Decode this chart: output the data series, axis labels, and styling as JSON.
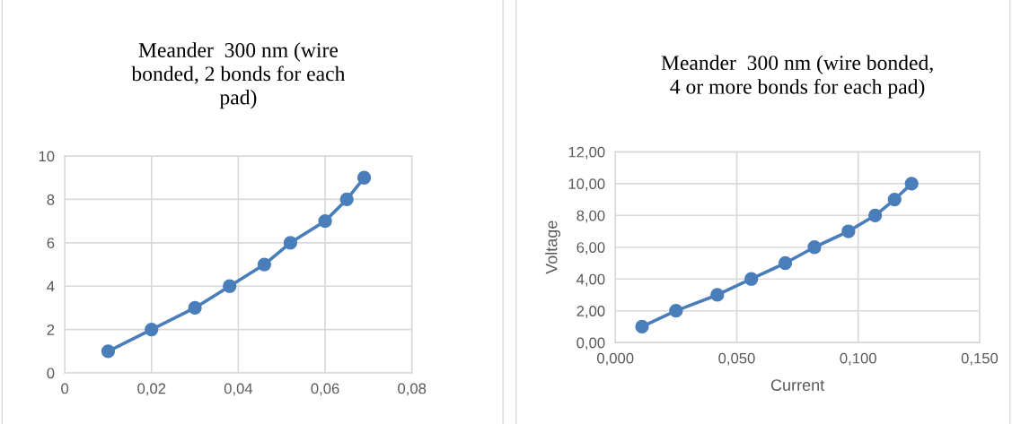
{
  "chart_data": [
    {
      "type": "line",
      "title": "Meander  300 nm (wire\nbonded, 2 bonds for each\npad)",
      "x": [
        0.01,
        0.02,
        0.03,
        0.038,
        0.046,
        0.052,
        0.06,
        0.065,
        0.069
      ],
      "series": [
        {
          "color": "#4a7ebb",
          "values": [
            1,
            2,
            3,
            4,
            5,
            6,
            7,
            8,
            9
          ]
        }
      ],
      "xlim": [
        0,
        0.08
      ],
      "xticks": [
        0,
        {
          "value": 0.02,
          "label": "0,02"
        },
        {
          "value": 0.04,
          "label": "0,04"
        },
        {
          "value": 0.06,
          "label": "0,06"
        },
        {
          "value": 0.08,
          "label": "0,08"
        }
      ],
      "ylim": [
        0,
        10
      ],
      "yticks": [
        0,
        2,
        4,
        6,
        8,
        10
      ],
      "grid": true,
      "marker": "circle",
      "line_style": "solid"
    },
    {
      "type": "line",
      "title": "Meander  300 nm (wire bonded,\n4 or more bonds for each pad)",
      "xlabel": "Current",
      "ylabel": "Voltage",
      "x": [
        0.011,
        0.025,
        0.042,
        0.056,
        0.07,
        0.082,
        0.096,
        0.107,
        0.115,
        0.122
      ],
      "series": [
        {
          "color": "#4a7ebb",
          "values": [
            1,
            2,
            3,
            4,
            5,
            6,
            7,
            8,
            9,
            10
          ]
        }
      ],
      "xlim": [
        0,
        0.15
      ],
      "xticks": [
        {
          "value": 0,
          "label": "0,000"
        },
        {
          "value": 0.05,
          "label": "0,050"
        },
        {
          "value": 0.1,
          "label": "0,100"
        },
        {
          "value": 0.15,
          "label": "0,150"
        }
      ],
      "ylim": [
        0,
        12
      ],
      "yticks": [
        {
          "value": 0,
          "label": "0,00"
        },
        {
          "value": 2,
          "label": "2,00"
        },
        {
          "value": 4,
          "label": "4,00"
        },
        {
          "value": 6,
          "label": "6,00"
        },
        {
          "value": 8,
          "label": "8,00"
        },
        {
          "value": 10,
          "label": "10,00"
        },
        {
          "value": 12,
          "label": "12,00"
        }
      ],
      "grid": true,
      "marker": "circle",
      "line_style": "solid"
    }
  ]
}
